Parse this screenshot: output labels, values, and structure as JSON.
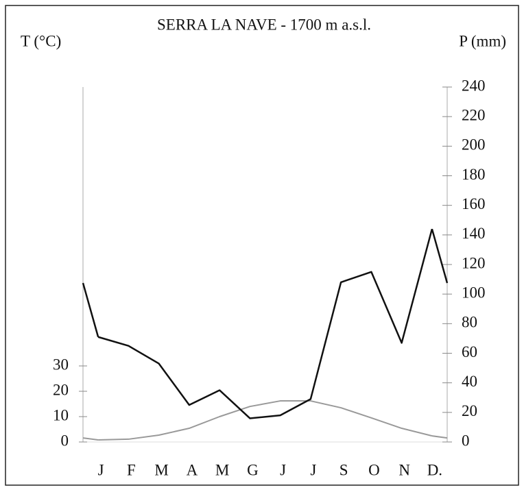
{
  "chart_data": {
    "type": "line",
    "title": "SERRA LA NAVE  - 1700 m a.s.l.",
    "y_label": "T (°C)",
    "y2_label": "P (mm)",
    "categories": [
      "J",
      "F",
      "M",
      "A",
      "M",
      "G",
      "J",
      "J",
      "S",
      "O",
      "N",
      "D."
    ],
    "series": [
      {
        "name": "P (mm)",
        "color": "#111111",
        "axis": "y2",
        "values": [
          71,
          65,
          53,
          25,
          35,
          16,
          18,
          29,
          108,
          115,
          67,
          144
        ]
      },
      {
        "name": "T (°C)",
        "color": "#999999",
        "axis": "y",
        "values": [
          0.8,
          1.1,
          2.7,
          5.4,
          10,
          14,
          16.2,
          16.2,
          13.5,
          9.5,
          5.4,
          2.4
        ]
      }
    ],
    "ylim": [
      0,
      140
    ],
    "yticks": [
      0,
      10,
      20,
      30
    ],
    "y2lim": [
      0,
      240
    ],
    "y2ticks": [
      0,
      20,
      40,
      60,
      80,
      100,
      120,
      140,
      160,
      180,
      200,
      220,
      240
    ]
  }
}
